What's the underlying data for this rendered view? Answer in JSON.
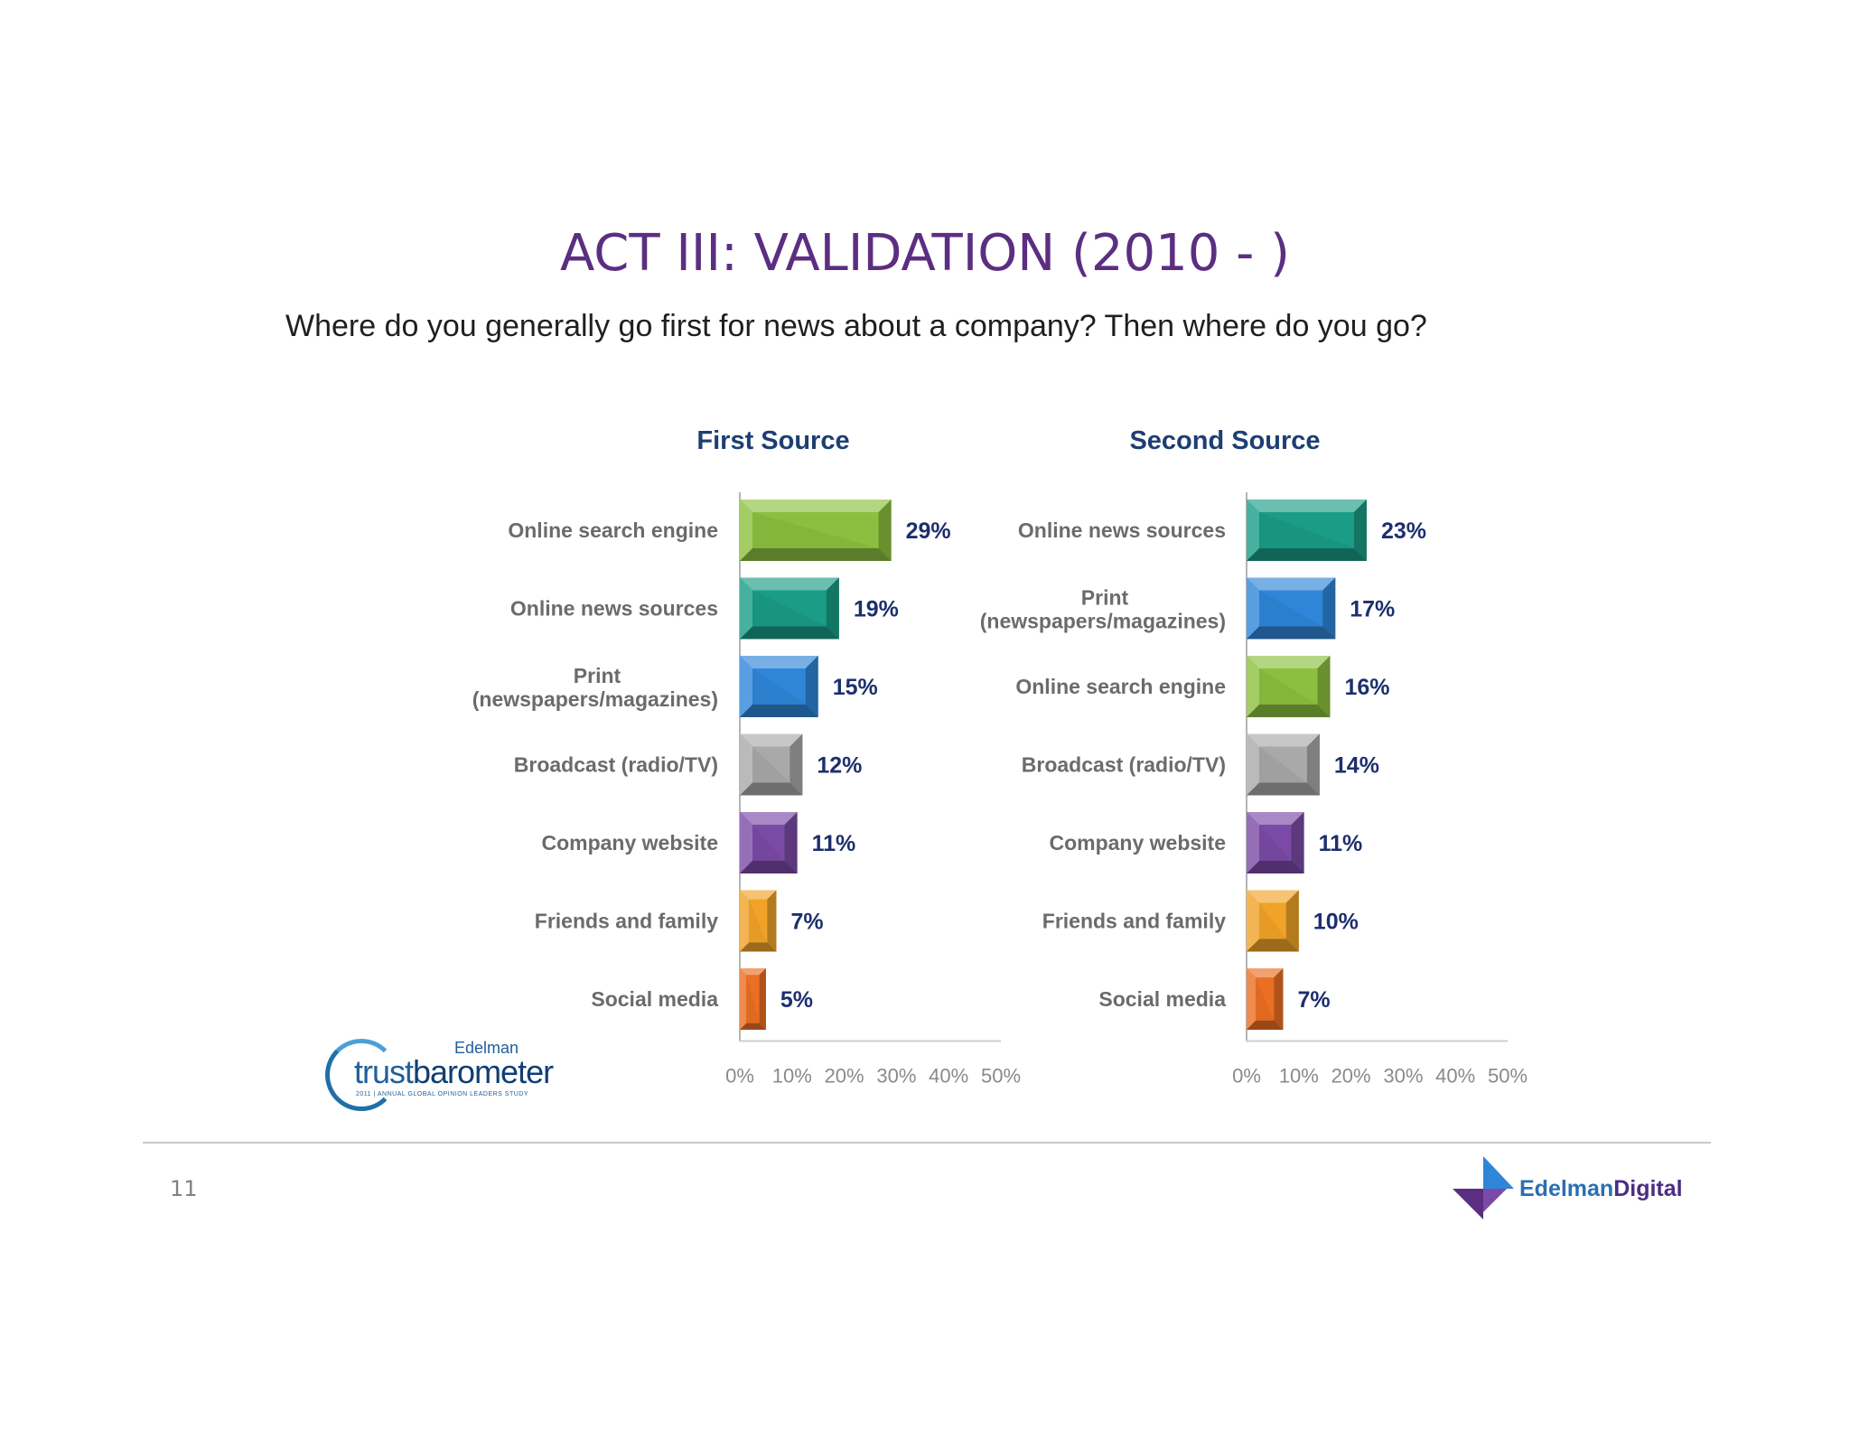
{
  "slide": {
    "title": "ACT III: VALIDATION (2010 - )",
    "question": "Where do you generally go first for news about a company? Then where do you go?",
    "page_number": "11"
  },
  "logos": {
    "trust_barometer": {
      "brand_small": "Edelman",
      "brand_main_a": "trust",
      "brand_main_b": "barometer",
      "tagline": "2011 | ANNUAL GLOBAL OPINION LEADERS STUDY"
    },
    "edelman_digital": {
      "part_a": "Edelman",
      "part_b": "Digital"
    }
  },
  "colors": {
    "Online search engine": "#8cbf3f",
    "Online news sources": "#1a9c86",
    "Print (newspapers/magazines)": "#2f86d8",
    "Broadcast (radio/TV)": "#a9a9a9",
    "Company website": "#7b4aa6",
    "Friends and family": "#f0a328",
    "Social media": "#ea6e23"
  },
  "chart_data": [
    {
      "type": "bar",
      "orientation": "horizontal",
      "title": "First Source",
      "categories": [
        "Online search engine",
        "Online news sources",
        "Print\n(newspapers/magazines)",
        "Broadcast (radio/TV)",
        "Company website",
        "Friends and family",
        "Social media"
      ],
      "values": [
        29,
        19,
        15,
        12,
        11,
        7,
        5
      ],
      "value_labels": [
        "29%",
        "19%",
        "15%",
        "12%",
        "11%",
        "7%",
        "5%"
      ],
      "xlim": [
        0,
        50
      ],
      "ticks": [
        0,
        10,
        20,
        30,
        40,
        50
      ],
      "tick_labels": [
        "0%",
        "10%",
        "20%",
        "30%",
        "40%",
        "50%"
      ],
      "grid": false
    },
    {
      "type": "bar",
      "orientation": "horizontal",
      "title": "Second Source",
      "categories": [
        "Online news sources",
        "Print\n(newspapers/magazines)",
        "Online search engine",
        "Broadcast (radio/TV)",
        "Company website",
        "Friends and family",
        "Social media"
      ],
      "values": [
        23,
        17,
        16,
        14,
        11,
        10,
        7
      ],
      "value_labels": [
        "23%",
        "17%",
        "16%",
        "14%",
        "11%",
        "10%",
        "7%"
      ],
      "xlim": [
        0,
        50
      ],
      "ticks": [
        0,
        10,
        20,
        30,
        40,
        50
      ],
      "tick_labels": [
        "0%",
        "10%",
        "20%",
        "30%",
        "40%",
        "50%"
      ],
      "grid": false
    }
  ]
}
